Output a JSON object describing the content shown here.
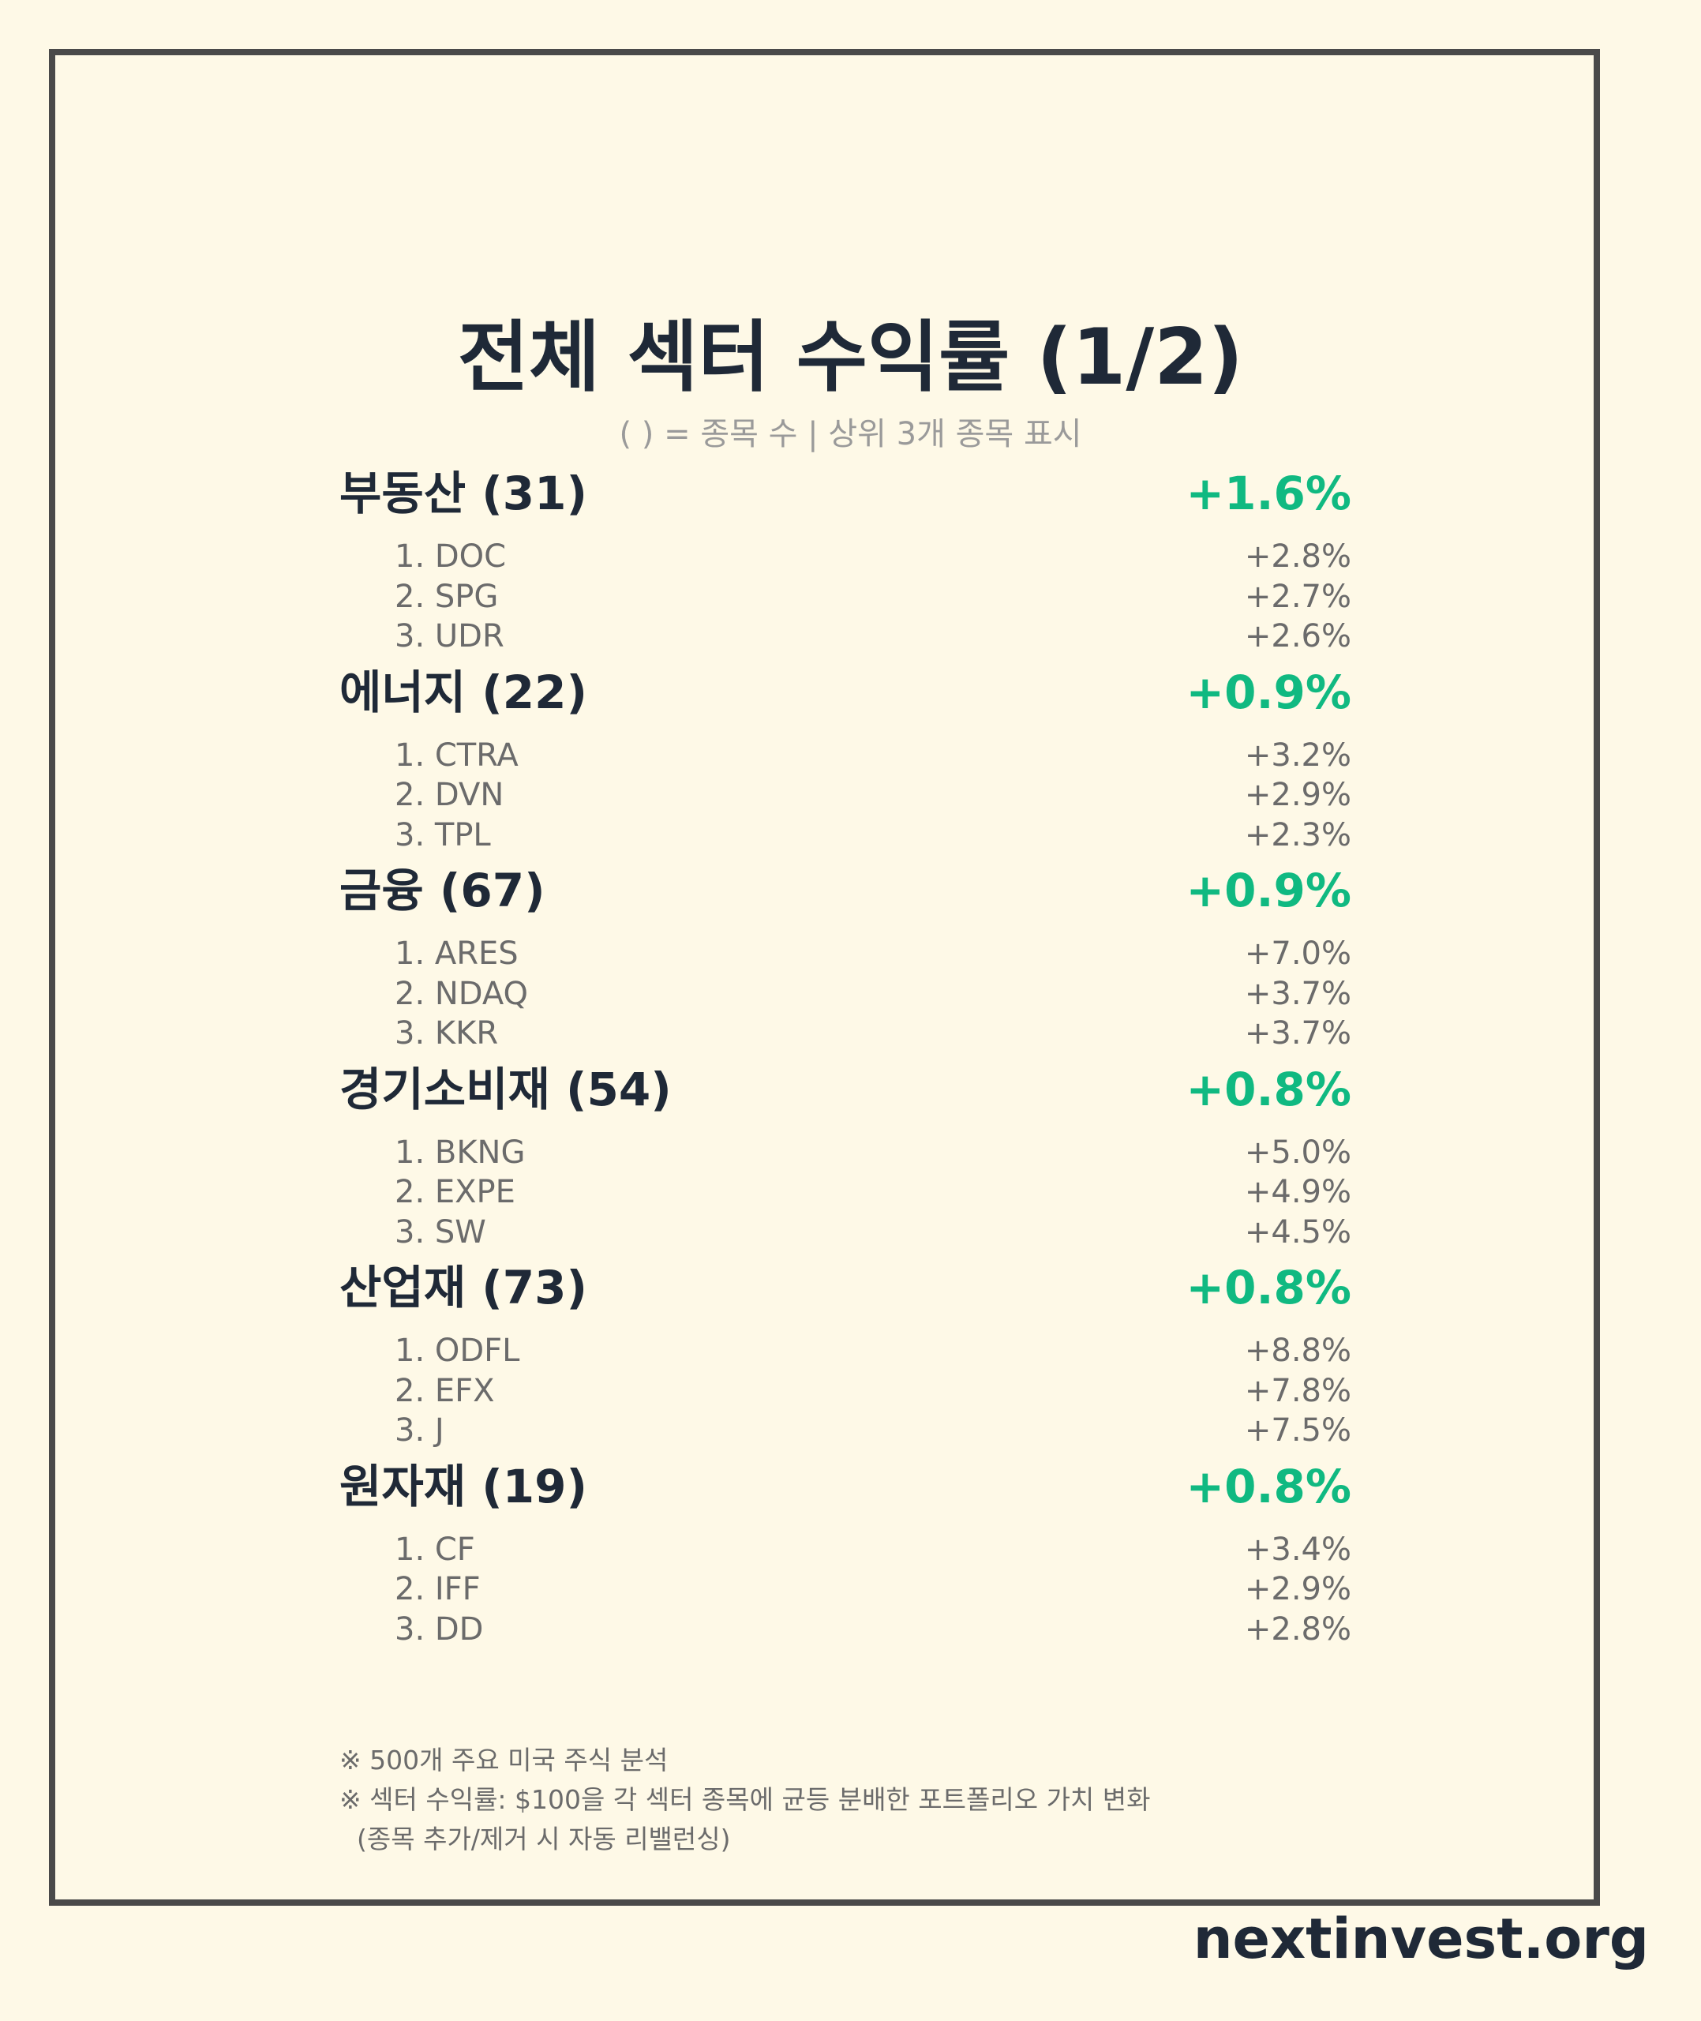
{
  "title": "전체 섹터 수익률 (1/2)",
  "subtitle": "( ) = 종목 수 | 상위 3개 종목 표시",
  "colors": {
    "background": "#fef9e7",
    "frame": "#4a4a4a",
    "heading": "#1f2937",
    "positive": "#10b981",
    "muted": "#6b6b6b"
  },
  "sectors": [
    {
      "name": "부동산 (31)",
      "return": "+1.6%",
      "stocks": [
        {
          "name": "1. DOC",
          "return": "+2.8%"
        },
        {
          "name": "2. SPG",
          "return": "+2.7%"
        },
        {
          "name": "3. UDR",
          "return": "+2.6%"
        }
      ]
    },
    {
      "name": "에너지 (22)",
      "return": "+0.9%",
      "stocks": [
        {
          "name": "1. CTRA",
          "return": "+3.2%"
        },
        {
          "name": "2. DVN",
          "return": "+2.9%"
        },
        {
          "name": "3. TPL",
          "return": "+2.3%"
        }
      ]
    },
    {
      "name": "금융 (67)",
      "return": "+0.9%",
      "stocks": [
        {
          "name": "1. ARES",
          "return": "+7.0%"
        },
        {
          "name": "2. NDAQ",
          "return": "+3.7%"
        },
        {
          "name": "3. KKR",
          "return": "+3.7%"
        }
      ]
    },
    {
      "name": "경기소비재 (54)",
      "return": "+0.8%",
      "stocks": [
        {
          "name": "1. BKNG",
          "return": "+5.0%"
        },
        {
          "name": "2. EXPE",
          "return": "+4.9%"
        },
        {
          "name": "3. SW",
          "return": "+4.5%"
        }
      ]
    },
    {
      "name": "산업재 (73)",
      "return": "+0.8%",
      "stocks": [
        {
          "name": "1. ODFL",
          "return": "+8.8%"
        },
        {
          "name": "2. EFX",
          "return": "+7.8%"
        },
        {
          "name": "3. J",
          "return": "+7.5%"
        }
      ]
    },
    {
      "name": "원자재 (19)",
      "return": "+0.8%",
      "stocks": [
        {
          "name": "1. CF",
          "return": "+3.4%"
        },
        {
          "name": "2. IFF",
          "return": "+2.9%"
        },
        {
          "name": "3. DD",
          "return": "+2.8%"
        }
      ]
    }
  ],
  "footnotes": [
    "※ 500개 주요 미국 주식 분석",
    "※ 섹터 수익률: $100을 각 섹터 종목에 균등 분배한 포트폴리오 가치 변화",
    "(종목 추가/제거 시 자동 리밸런싱)"
  ],
  "brand": "nextinvest.org"
}
